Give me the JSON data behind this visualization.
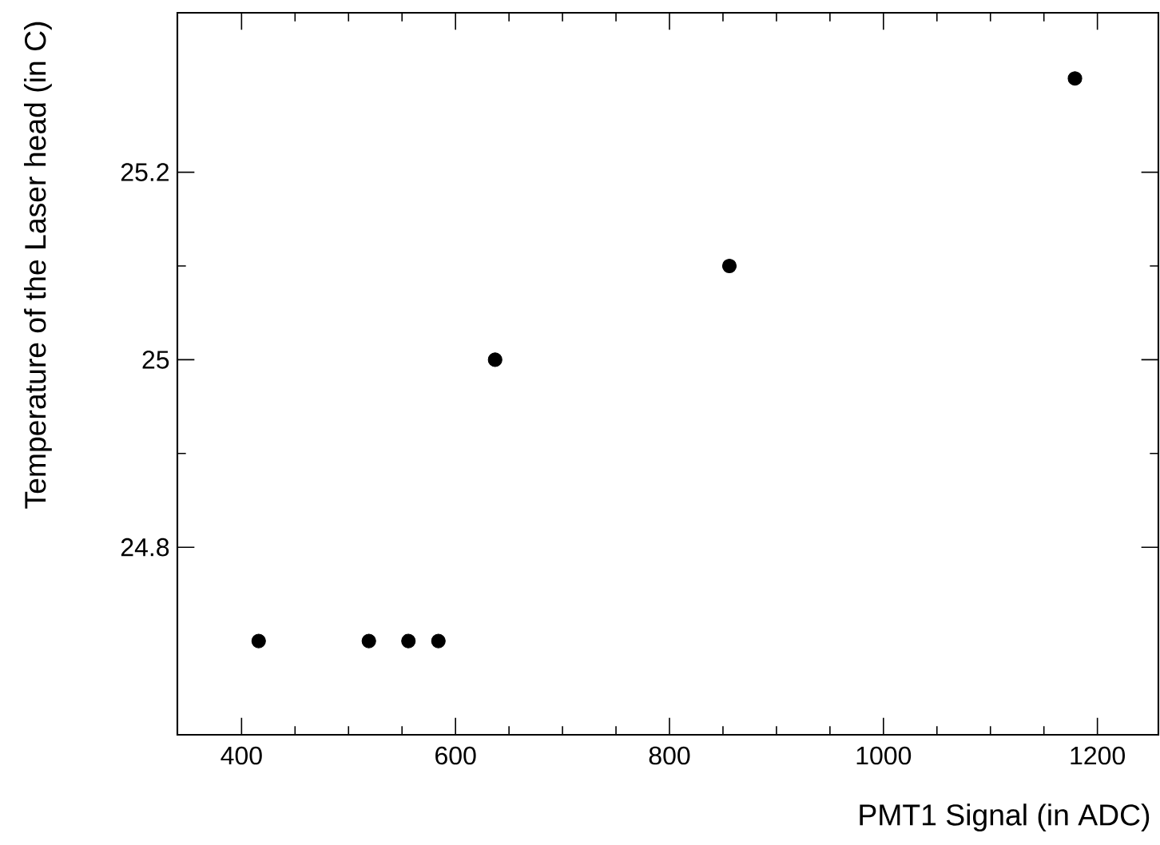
{
  "chart_data": {
    "type": "scatter",
    "xlabel": "PMT1 Signal (in ADC)",
    "ylabel": "Temperature of the Laser head (in C)",
    "x": [
      416,
      519,
      556,
      584,
      637,
      856,
      1179
    ],
    "series": [
      {
        "color": "#000000",
        "values": [
          24.7,
          24.7,
          24.7,
          24.7,
          25.0,
          25.1,
          25.3
        ]
      }
    ],
    "xlim": [
      340,
      1257
    ],
    "ylim": [
      24.6,
      25.37
    ],
    "xticks": [
      400,
      600,
      800,
      1000,
      1200
    ],
    "yticks": [
      24.8,
      25,
      25.2
    ],
    "marker": "circle"
  }
}
